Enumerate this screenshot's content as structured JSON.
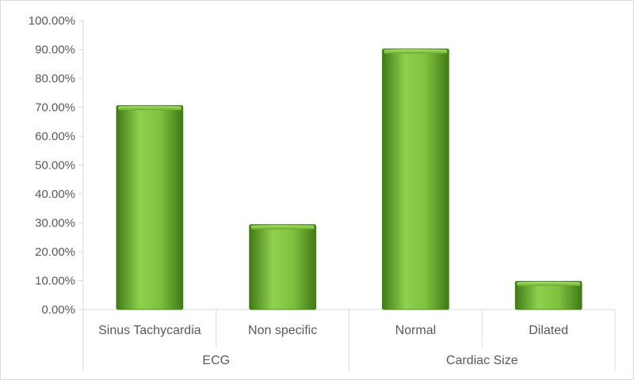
{
  "chart_data": {
    "type": "bar",
    "title": "",
    "xlabel": "",
    "ylabel": "",
    "ylim": [
      0,
      100
    ],
    "y_ticks": [
      "0.00%",
      "10.00%",
      "20.00%",
      "30.00%",
      "40.00%",
      "50.00%",
      "60.00%",
      "70.00%",
      "80.00%",
      "90.00%",
      "100.00%"
    ],
    "categories": [
      "Sinus Tachycardia",
      "Non specific",
      "Normal",
      "Dilated"
    ],
    "groups": [
      {
        "label": "ECG",
        "categories": [
          "Sinus Tachycardia",
          "Non specific"
        ]
      },
      {
        "label": "Cardiac Size",
        "categories": [
          "Normal",
          "Dilated"
        ]
      }
    ],
    "values": [
      70.6,
      29.4,
      90.2,
      9.8
    ],
    "grid": false,
    "legend": "none",
    "colors": {
      "bar_light": "#8fd14f",
      "bar_mid": "#6aaa2e",
      "bar_dark": "#3f7a16",
      "axis": "#d9d9d9"
    }
  }
}
